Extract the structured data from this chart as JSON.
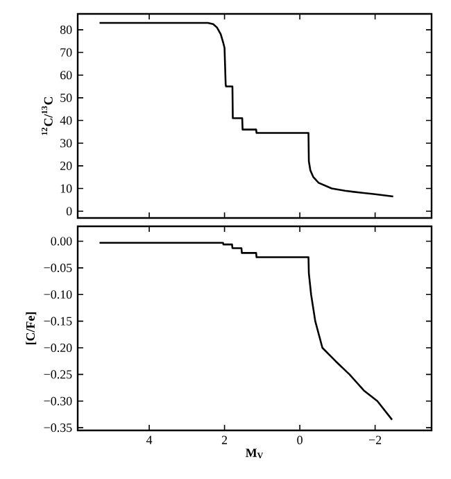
{
  "chart_data": [
    {
      "type": "line",
      "ylabel": "$^{12}$C/$^{13}$C",
      "xlim": [
        5.9,
        -3.5
      ],
      "ylim": [
        -3,
        87
      ],
      "xticks": [
        4,
        2,
        0,
        -2
      ],
      "yticks": [
        0,
        10,
        20,
        30,
        40,
        50,
        60,
        70,
        80
      ],
      "tick_labels": "y",
      "series": [
        {
          "color": "#000000",
          "x": [
            5.32,
            2.44,
            2.3,
            2.2,
            2.1,
            2.03,
            2.0,
            1.97,
            1.96,
            1.79,
            1.78,
            1.53,
            1.52,
            1.16,
            1.15,
            -0.23,
            -0.24,
            -0.28,
            -0.36,
            -0.5,
            -0.85,
            -1.2,
            -1.7,
            -2.0,
            -2.48
          ],
          "values": [
            83,
            83,
            82.5,
            81,
            78,
            74,
            72,
            56,
            55,
            55,
            41,
            41,
            36,
            36,
            34.5,
            34.5,
            22,
            18,
            15,
            12.5,
            10,
            9,
            8,
            7.5,
            6.5
          ]
        }
      ]
    },
    {
      "type": "line",
      "xlabel": "M$_{V}$",
      "ylabel": "[C/Fe]",
      "xlim": [
        5.9,
        -3.5
      ],
      "ylim": [
        -0.355,
        0.028
      ],
      "xticks": [
        4,
        2,
        0,
        {
          "value": -2,
          "label": "−2"
        }
      ],
      "yticks": [
        {
          "value": 0,
          "label": "0.00"
        },
        {
          "value": -0.05,
          "label": "−0.05"
        },
        {
          "value": -0.1,
          "label": "−0.10"
        },
        {
          "value": -0.15,
          "label": "−0.15"
        },
        {
          "value": -0.2,
          "label": "−0.20"
        },
        {
          "value": -0.25,
          "label": "−0.25"
        },
        {
          "value": -0.3,
          "label": "−0.30"
        },
        {
          "value": -0.35,
          "label": "−0.35"
        }
      ],
      "series": [
        {
          "color": "#000000",
          "x": [
            5.32,
            2.04,
            2.03,
            1.8,
            1.79,
            1.55,
            1.54,
            1.16,
            1.15,
            -0.23,
            -0.24,
            -0.3,
            -0.41,
            -0.6,
            -0.95,
            -1.32,
            -1.7,
            -2.06,
            -2.45
          ],
          "values": [
            -0.003,
            -0.003,
            -0.006,
            -0.006,
            -0.013,
            -0.013,
            -0.022,
            -0.022,
            -0.03,
            -0.03,
            -0.06,
            -0.1,
            -0.15,
            -0.2,
            -0.225,
            -0.25,
            -0.28,
            -0.3,
            -0.335
          ]
        }
      ]
    }
  ]
}
